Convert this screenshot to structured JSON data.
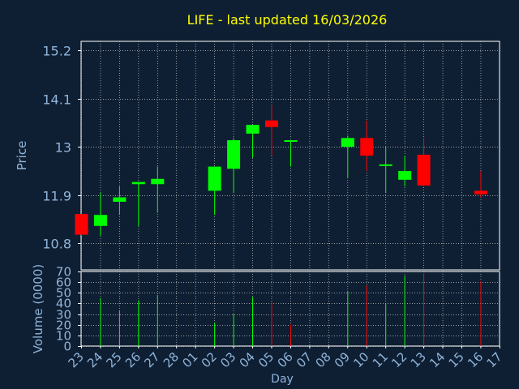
{
  "chart_data": {
    "title": "LIFE - last updated 16/03/2026",
    "xlabel": "Day",
    "colors": {
      "background": "#0f1f33",
      "title": "#ffff00",
      "axis_text": "#8fb4d9",
      "grid": "#c8c8c8",
      "up": "#00ff00",
      "down": "#ff0000"
    },
    "grid": true,
    "x_ticks": [
      "23",
      "24",
      "25",
      "26",
      "27",
      "28",
      "01",
      "02",
      "03",
      "04",
      "05",
      "06",
      "07",
      "08",
      "09",
      "10",
      "11",
      "12",
      "13",
      "14",
      "15",
      "16",
      "17"
    ],
    "price_panel": {
      "type": "candlestick",
      "ylabel": "Price",
      "ylim": [
        10.2,
        15.4
      ],
      "y_ticks": [
        "10.8",
        "11.9",
        "13",
        "14.1",
        "15.2"
      ],
      "candles": [
        {
          "x": "23",
          "open": 11.47,
          "high": 11.47,
          "low": 10.98,
          "close": 11.0
        },
        {
          "x": "24",
          "open": 11.2,
          "high": 11.95,
          "low": 10.98,
          "close": 11.45
        },
        {
          "x": "25",
          "open": 11.75,
          "high": 12.1,
          "low": 11.45,
          "close": 11.85
        },
        {
          "x": "26",
          "open": 12.15,
          "high": 12.2,
          "low": 11.2,
          "close": 12.2
        },
        {
          "x": "27",
          "open": 12.15,
          "high": 12.55,
          "low": 11.5,
          "close": 12.27
        },
        {
          "x": "02",
          "open": 12.0,
          "high": 12.55,
          "low": 11.45,
          "close": 12.55
        },
        {
          "x": "03",
          "open": 12.5,
          "high": 13.2,
          "low": 11.95,
          "close": 13.15
        },
        {
          "x": "04",
          "open": 13.3,
          "high": 13.5,
          "low": 12.75,
          "close": 13.5
        },
        {
          "x": "05",
          "open": 13.6,
          "high": 13.95,
          "low": 12.8,
          "close": 13.45
        },
        {
          "x": "06",
          "open": 13.15,
          "high": 13.15,
          "low": 12.55,
          "close": 13.15
        },
        {
          "x": "09",
          "open": 13.0,
          "high": 13.25,
          "low": 12.3,
          "close": 13.2
        },
        {
          "x": "10",
          "open": 13.2,
          "high": 13.6,
          "low": 12.45,
          "close": 12.8
        },
        {
          "x": "11",
          "open": 12.6,
          "high": 13.0,
          "low": 11.95,
          "close": 12.6
        },
        {
          "x": "12",
          "open": 12.25,
          "high": 12.8,
          "low": 12.1,
          "close": 12.45
        },
        {
          "x": "13",
          "open": 12.82,
          "high": 13.2,
          "low": 12.1,
          "close": 12.12
        },
        {
          "x": "16",
          "open": 12.0,
          "high": 12.45,
          "low": 11.85,
          "close": 11.92
        }
      ]
    },
    "volume_panel": {
      "type": "bar",
      "ylabel": "Volume (0000)",
      "ylim": [
        0,
        70
      ],
      "y_ticks": [
        "0",
        "10",
        "20",
        "30",
        "40",
        "50",
        "60",
        "70"
      ],
      "bars": [
        {
          "x": "24",
          "value": 45,
          "direction": "up"
        },
        {
          "x": "25",
          "value": 33,
          "direction": "up"
        },
        {
          "x": "26",
          "value": 43,
          "direction": "up"
        },
        {
          "x": "27",
          "value": 48,
          "direction": "up"
        },
        {
          "x": "02",
          "value": 22,
          "direction": "up"
        },
        {
          "x": "03",
          "value": 30,
          "direction": "up"
        },
        {
          "x": "04",
          "value": 46,
          "direction": "up"
        },
        {
          "x": "05",
          "value": 41,
          "direction": "down"
        },
        {
          "x": "06",
          "value": 20,
          "direction": "down"
        },
        {
          "x": "09",
          "value": 51,
          "direction": "up"
        },
        {
          "x": "10",
          "value": 57,
          "direction": "down"
        },
        {
          "x": "11",
          "value": 40,
          "direction": "up"
        },
        {
          "x": "12",
          "value": 66,
          "direction": "up"
        },
        {
          "x": "13",
          "value": 68,
          "direction": "down"
        },
        {
          "x": "16",
          "value": 61,
          "direction": "down"
        }
      ]
    }
  }
}
